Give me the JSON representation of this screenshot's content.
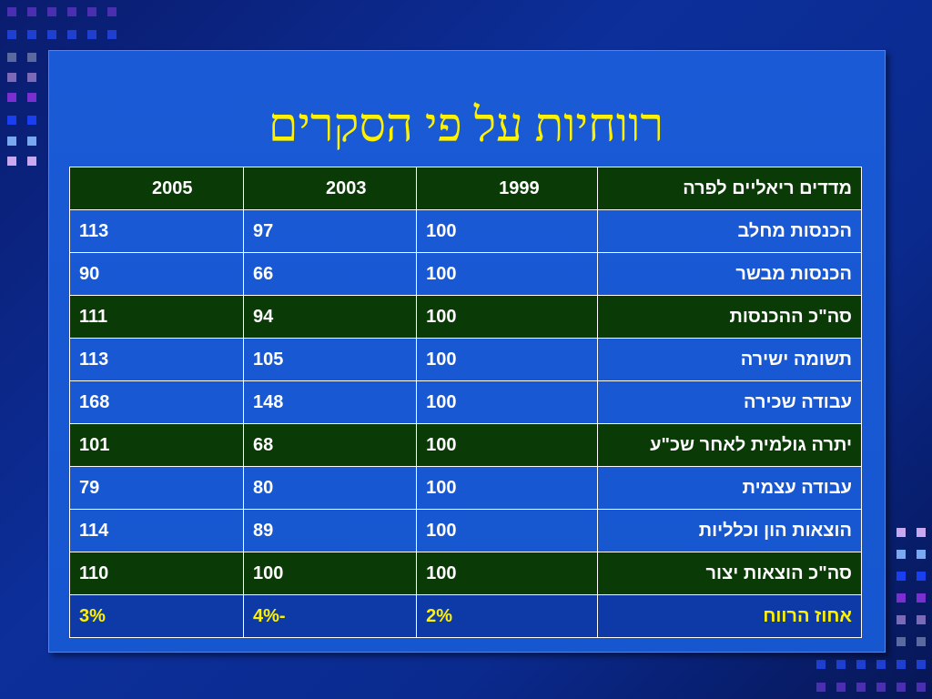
{
  "title": "רווחיות על פי הסקרים",
  "table": {
    "header": {
      "label": "מדדים ריאליים לפרה",
      "years": [
        "1999",
        "2003",
        "2005"
      ]
    },
    "rows": [
      {
        "label": "הכנסות מחלב",
        "values": [
          "100",
          "97",
          "113"
        ],
        "style": "light"
      },
      {
        "label": "הכנסות מבשר",
        "values": [
          "100",
          "66",
          "90"
        ],
        "style": "light"
      },
      {
        "label": "סה\"כ ההכנסות",
        "values": [
          "100",
          "94",
          "111"
        ],
        "style": "dark"
      },
      {
        "label": "תשומה ישירה",
        "values": [
          "100",
          "105",
          "113"
        ],
        "style": "light"
      },
      {
        "label": "עבודה שכירה",
        "values": [
          "100",
          "148",
          "168"
        ],
        "style": "light"
      },
      {
        "label": "יתרה גולמית לאחר שכ\"ע",
        "values": [
          "100",
          "68",
          "101"
        ],
        "style": "dark"
      },
      {
        "label": "עבודה עצמית",
        "values": [
          "100",
          "80",
          "79"
        ],
        "style": "light"
      },
      {
        "label": "הוצאות הון וכלליות",
        "values": [
          "100",
          "89",
          "114"
        ],
        "style": "light"
      },
      {
        "label": "סה\"כ הוצאות יצור",
        "values": [
          "100",
          "100",
          "110"
        ],
        "style": "dark"
      },
      {
        "label": "אחוז הרווח",
        "values": [
          "2%",
          "-4%",
          "3%"
        ],
        "style": "last"
      }
    ]
  },
  "colors": {
    "background": "#0c2f9a",
    "slide": "#1656cf",
    "title": "#fff200",
    "highlight_row": "#0a3a06",
    "footer_row": "#0e3aa8"
  }
}
